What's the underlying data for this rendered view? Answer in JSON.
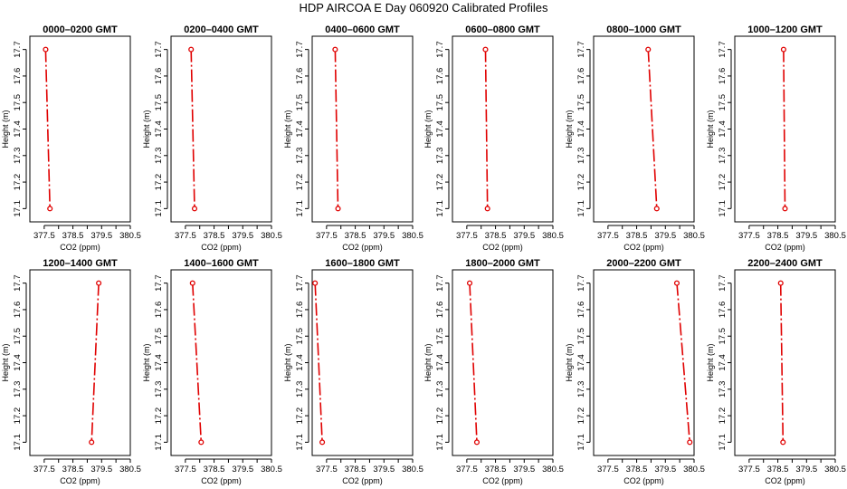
{
  "title": "HDP  AIRCOA E  Day 060920  Calibrated Profiles",
  "chart_data": [
    {
      "type": "line",
      "title": "0000–0200 GMT",
      "xlabel": "CO2 (ppm)",
      "ylabel": "Height (m)",
      "xlim": [
        377.0,
        380.5
      ],
      "ylim": [
        17.05,
        17.75
      ],
      "x_ticks": [
        "377.5",
        "378.5",
        "379.5",
        "380.5"
      ],
      "y_ticks": [
        "17.1",
        "17.2",
        "17.3",
        "17.4",
        "17.5",
        "17.6",
        "17.7"
      ],
      "grid": false,
      "points": [
        {
          "x": 377.55,
          "y": 17.7
        },
        {
          "x": 377.7,
          "y": 17.1
        }
      ]
    },
    {
      "type": "line",
      "title": "0200–0400 GMT",
      "xlabel": "CO2 (ppm)",
      "ylabel": "Height (m)",
      "xlim": [
        377.0,
        380.5
      ],
      "ylim": [
        17.05,
        17.75
      ],
      "x_ticks": [
        "377.5",
        "378.5",
        "379.5",
        "380.5"
      ],
      "y_ticks": [
        "17.1",
        "17.2",
        "17.3",
        "17.4",
        "17.5",
        "17.6",
        "17.7"
      ],
      "grid": false,
      "points": [
        {
          "x": 377.7,
          "y": 17.7
        },
        {
          "x": 377.82,
          "y": 17.1
        }
      ]
    },
    {
      "type": "line",
      "title": "0400–0600 GMT",
      "xlabel": "CO2 (ppm)",
      "ylabel": "Height (m)",
      "xlim": [
        377.0,
        380.5
      ],
      "ylim": [
        17.05,
        17.75
      ],
      "x_ticks": [
        "377.5",
        "378.5",
        "379.5",
        "380.5"
      ],
      "y_ticks": [
        "17.1",
        "17.2",
        "17.3",
        "17.4",
        "17.5",
        "17.6",
        "17.7"
      ],
      "grid": false,
      "points": [
        {
          "x": 377.8,
          "y": 17.7
        },
        {
          "x": 377.9,
          "y": 17.1
        }
      ]
    },
    {
      "type": "line",
      "title": "0600–0800 GMT",
      "xlabel": "CO2 (ppm)",
      "ylabel": "Height (m)",
      "xlim": [
        377.0,
        380.5
      ],
      "ylim": [
        17.05,
        17.75
      ],
      "x_ticks": [
        "377.5",
        "378.5",
        "379.5",
        "380.5"
      ],
      "y_ticks": [
        "17.1",
        "17.2",
        "17.3",
        "17.4",
        "17.5",
        "17.6",
        "17.7"
      ],
      "grid": false,
      "points": [
        {
          "x": 378.15,
          "y": 17.7
        },
        {
          "x": 378.22,
          "y": 17.1
        }
      ]
    },
    {
      "type": "line",
      "title": "0800–1000 GMT",
      "xlabel": "CO2 (ppm)",
      "ylabel": "Height (m)",
      "xlim": [
        377.0,
        380.5
      ],
      "ylim": [
        17.05,
        17.75
      ],
      "x_ticks": [
        "377.5",
        "378.5",
        "379.5",
        "380.5"
      ],
      "y_ticks": [
        "17.1",
        "17.2",
        "17.3",
        "17.4",
        "17.5",
        "17.6",
        "17.7"
      ],
      "grid": false,
      "points": [
        {
          "x": 378.9,
          "y": 17.7
        },
        {
          "x": 379.2,
          "y": 17.1
        }
      ]
    },
    {
      "type": "line",
      "title": "1000–1200 GMT",
      "xlabel": "CO2 (ppm)",
      "ylabel": "Height (m)",
      "xlim": [
        377.0,
        380.5
      ],
      "ylim": [
        17.05,
        17.75
      ],
      "x_ticks": [
        "377.5",
        "378.5",
        "379.5",
        "380.5"
      ],
      "y_ticks": [
        "17.1",
        "17.2",
        "17.3",
        "17.4",
        "17.5",
        "17.6",
        "17.7"
      ],
      "grid": false,
      "points": [
        {
          "x": 378.7,
          "y": 17.7
        },
        {
          "x": 378.75,
          "y": 17.1
        }
      ]
    },
    {
      "type": "line",
      "title": "1200–1400 GMT",
      "xlabel": "CO2 (ppm)",
      "ylabel": "Height (m)",
      "xlim": [
        377.0,
        380.5
      ],
      "ylim": [
        17.05,
        17.75
      ],
      "x_ticks": [
        "377.5",
        "378.5",
        "379.5",
        "380.5"
      ],
      "y_ticks": [
        "17.1",
        "17.2",
        "17.3",
        "17.4",
        "17.5",
        "17.6",
        "17.7"
      ],
      "grid": false,
      "points": [
        {
          "x": 379.4,
          "y": 17.7
        },
        {
          "x": 379.15,
          "y": 17.1
        }
      ]
    },
    {
      "type": "line",
      "title": "1400–1600 GMT",
      "xlabel": "CO2 (ppm)",
      "ylabel": "Height (m)",
      "xlim": [
        377.0,
        380.5
      ],
      "ylim": [
        17.05,
        17.75
      ],
      "x_ticks": [
        "377.5",
        "378.5",
        "379.5",
        "380.5"
      ],
      "y_ticks": [
        "17.1",
        "17.2",
        "17.3",
        "17.4",
        "17.5",
        "17.6",
        "17.7"
      ],
      "grid": false,
      "points": [
        {
          "x": 377.75,
          "y": 17.7
        },
        {
          "x": 378.05,
          "y": 17.1
        }
      ]
    },
    {
      "type": "line",
      "title": "1600–1800 GMT",
      "xlabel": "CO2 (ppm)",
      "ylabel": "Height (m)",
      "xlim": [
        377.0,
        380.5
      ],
      "ylim": [
        17.05,
        17.75
      ],
      "x_ticks": [
        "377.5",
        "378.5",
        "379.5",
        "380.5"
      ],
      "y_ticks": [
        "17.1",
        "17.2",
        "17.3",
        "17.4",
        "17.5",
        "17.6",
        "17.7"
      ],
      "grid": false,
      "points": [
        {
          "x": 377.1,
          "y": 17.7
        },
        {
          "x": 377.35,
          "y": 17.1
        }
      ]
    },
    {
      "type": "line",
      "title": "1800–2000 GMT",
      "xlabel": "CO2 (ppm)",
      "ylabel": "Height (m)",
      "xlim": [
        377.0,
        380.5
      ],
      "ylim": [
        17.05,
        17.75
      ],
      "x_ticks": [
        "377.5",
        "378.5",
        "379.5",
        "380.5"
      ],
      "y_ticks": [
        "17.1",
        "17.2",
        "17.3",
        "17.4",
        "17.5",
        "17.6",
        "17.7"
      ],
      "grid": false,
      "points": [
        {
          "x": 377.6,
          "y": 17.7
        },
        {
          "x": 377.85,
          "y": 17.1
        }
      ]
    },
    {
      "type": "line",
      "title": "2000–2200 GMT",
      "xlabel": "CO2 (ppm)",
      "ylabel": "Height (m)",
      "xlim": [
        377.0,
        380.5
      ],
      "ylim": [
        17.05,
        17.75
      ],
      "x_ticks": [
        "377.5",
        "378.5",
        "379.5",
        "380.5"
      ],
      "y_ticks": [
        "17.1",
        "17.2",
        "17.3",
        "17.4",
        "17.5",
        "17.6",
        "17.7"
      ],
      "grid": false,
      "points": [
        {
          "x": 379.9,
          "y": 17.7
        },
        {
          "x": 380.35,
          "y": 17.1
        }
      ]
    },
    {
      "type": "line",
      "title": "2200–2400 GMT",
      "xlabel": "CO2 (ppm)",
      "ylabel": "Height (m)",
      "xlim": [
        377.0,
        380.5
      ],
      "ylim": [
        17.05,
        17.75
      ],
      "x_ticks": [
        "377.5",
        "378.5",
        "379.5",
        "380.5"
      ],
      "y_ticks": [
        "17.1",
        "17.2",
        "17.3",
        "17.4",
        "17.5",
        "17.6",
        "17.7"
      ],
      "grid": false,
      "points": [
        {
          "x": 378.6,
          "y": 17.7
        },
        {
          "x": 378.68,
          "y": 17.1
        }
      ]
    }
  ],
  "colors": {
    "profile": "#e00000",
    "axes": "#000000"
  }
}
